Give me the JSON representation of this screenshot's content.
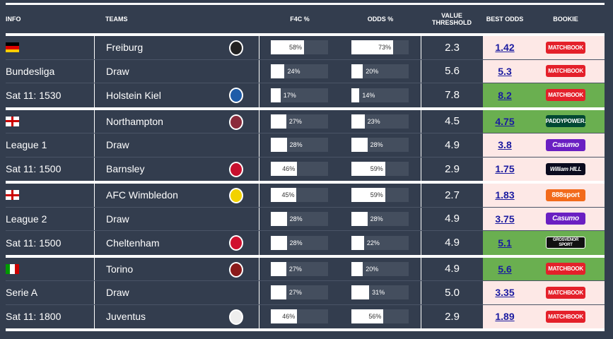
{
  "header": {
    "info": "INFO",
    "teams": "TEAMS",
    "f4c": "F4C %",
    "odds": "ODDS %",
    "value_threshold": "VALUE THRESHOLD",
    "best_odds": "BEST ODDS",
    "bookie": "BOOKIE"
  },
  "colors": {
    "background": "#333d4e",
    "pink": "#fde8e6",
    "green": "#6aaf50",
    "bar_track": "#444e5e"
  },
  "matches": [
    {
      "flag": "germany",
      "league": "Bundesliga",
      "time": "Sat 11: 1530",
      "rows": [
        {
          "team": "Freiburg",
          "crest": "freiburg-crest",
          "f4c": 58,
          "odds_pct": 73,
          "threshold": "2.3",
          "best_odds": "1.42",
          "bookie": "MATCHBOOK",
          "highlight": "pink"
        },
        {
          "team": "Draw",
          "f4c": 24,
          "odds_pct": 20,
          "threshold": "5.6",
          "best_odds": "5.3",
          "bookie": "MATCHBOOK",
          "highlight": "pink"
        },
        {
          "team": "Holstein Kiel",
          "crest": "holstein-kiel-crest",
          "f4c": 17,
          "odds_pct": 14,
          "threshold": "7.8",
          "best_odds": "8.2",
          "bookie": "MATCHBOOK",
          "highlight": "green"
        }
      ]
    },
    {
      "flag": "england",
      "league": "League 1",
      "time": "Sat 11: 1500",
      "rows": [
        {
          "team": "Northampton",
          "crest": "northampton-crest",
          "f4c": 27,
          "odds_pct": 23,
          "threshold": "4.5",
          "best_odds": "4.75",
          "bookie": "PADDYPOWER.",
          "highlight": "green"
        },
        {
          "team": "Draw",
          "f4c": 28,
          "odds_pct": 28,
          "threshold": "4.9",
          "best_odds": "3.8",
          "bookie": "Casumo",
          "highlight": "pink"
        },
        {
          "team": "Barnsley",
          "crest": "barnsley-crest",
          "f4c": 46,
          "odds_pct": 59,
          "threshold": "2.9",
          "best_odds": "1.75",
          "bookie": "William HILL",
          "highlight": "pink"
        }
      ]
    },
    {
      "flag": "england",
      "league": "League 2",
      "time": "Sat 11: 1500",
      "rows": [
        {
          "team": "AFC Wimbledon",
          "crest": "wimbledon-crest",
          "f4c": 45,
          "odds_pct": 59,
          "threshold": "2.7",
          "best_odds": "1.83",
          "bookie": "888sport",
          "highlight": "pink"
        },
        {
          "team": "Draw",
          "f4c": 28,
          "odds_pct": 28,
          "threshold": "4.9",
          "best_odds": "3.75",
          "bookie": "Casumo",
          "highlight": "pink"
        },
        {
          "team": "Cheltenham",
          "crest": "cheltenham-crest",
          "f4c": 28,
          "odds_pct": 22,
          "threshold": "4.9",
          "best_odds": "5.1",
          "bookie": "GROSVENOR SPORT",
          "highlight": "green"
        }
      ]
    },
    {
      "flag": "italy",
      "league": "Serie A",
      "time": "Sat 11: 1800",
      "rows": [
        {
          "team": "Torino",
          "crest": "torino-crest",
          "f4c": 27,
          "odds_pct": 20,
          "threshold": "4.9",
          "best_odds": "5.6",
          "bookie": "MATCHBOOK",
          "highlight": "green"
        },
        {
          "team": "Draw",
          "f4c": 27,
          "odds_pct": 31,
          "threshold": "5.0",
          "best_odds": "3.35",
          "bookie": "MATCHBOOK",
          "highlight": "pink"
        },
        {
          "team": "Juventus",
          "crest": "juventus-crest",
          "f4c": 46,
          "odds_pct": 56,
          "threshold": "2.9",
          "best_odds": "1.89",
          "bookie": "MATCHBOOK",
          "highlight": "pink"
        }
      ]
    }
  ]
}
